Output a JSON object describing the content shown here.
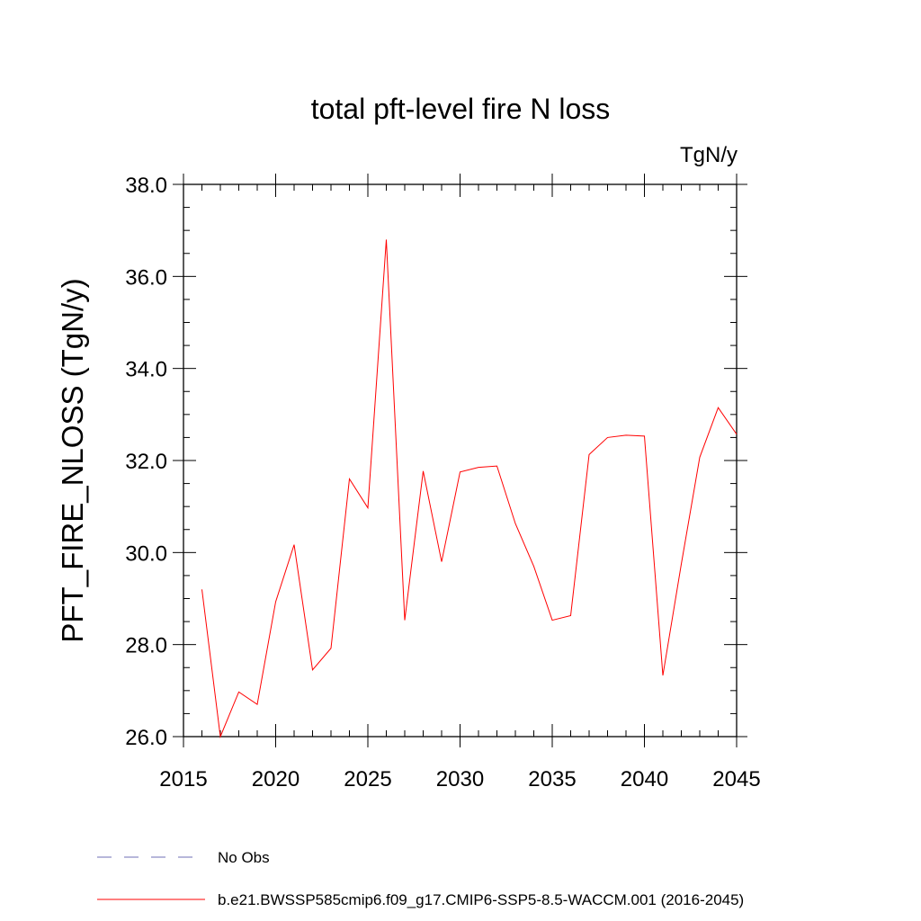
{
  "chart_data": {
    "type": "line",
    "title": "total pft-level fire N loss",
    "units": "TgN/y",
    "ylabel": "PFT_FIRE_NLOSS  (TgN/y)",
    "xlabel": "",
    "xlim": [
      2015,
      2045
    ],
    "ylim": [
      26.0,
      38.0
    ],
    "x_ticks": [
      2015,
      2020,
      2025,
      2030,
      2035,
      2040,
      2045
    ],
    "x_tick_labels": [
      "2015",
      "2020",
      "2025",
      "2030",
      "2035",
      "2040",
      "2045"
    ],
    "y_ticks": [
      26.0,
      28.0,
      30.0,
      32.0,
      34.0,
      36.0,
      38.0
    ],
    "y_tick_labels": [
      "26.0",
      "28.0",
      "30.0",
      "32.0",
      "34.0",
      "36.0",
      "38.0"
    ],
    "grid": false,
    "legend_position": "bottom",
    "series": [
      {
        "name": "b.e21.BWSSP585cmip6.f09_g17.CMIP6-SSP5-8.5-WACCM.001 (2016-2045)",
        "color": "#ff0000",
        "x": [
          2016,
          2017,
          2018,
          2019,
          2020,
          2021,
          2022,
          2023,
          2024,
          2025,
          2026,
          2027,
          2028,
          2029,
          2030,
          2031,
          2032,
          2033,
          2034,
          2035,
          2036,
          2037,
          2038,
          2039,
          2040,
          2041,
          2042,
          2043,
          2044,
          2045
        ],
        "values": [
          29.2,
          26.0,
          26.97,
          26.7,
          28.93,
          30.17,
          27.45,
          27.92,
          31.6,
          30.97,
          36.8,
          28.53,
          31.77,
          29.8,
          31.75,
          31.85,
          31.88,
          30.63,
          29.7,
          28.53,
          28.63,
          32.13,
          32.5,
          32.55,
          32.53,
          27.33,
          29.75,
          32.07,
          33.15,
          32.57
        ]
      }
    ],
    "legend": [
      {
        "label": "No Obs",
        "color": "#6f6fb4",
        "style": "dashed"
      },
      {
        "label": "b.e21.BWSSP585cmip6.f09_g17.CMIP6-SSP5-8.5-WACCM.001 (2016-2045)",
        "color": "#ff0000",
        "style": "solid"
      }
    ]
  }
}
